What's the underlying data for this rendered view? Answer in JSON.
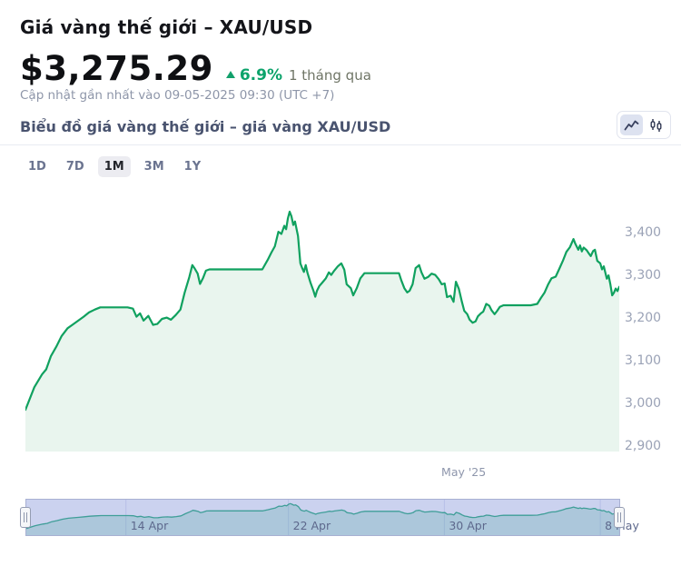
{
  "header": {
    "title": "Giá vàng thế giới – XAU/USD",
    "price": "$3,275.29",
    "change_percent": "6.9%",
    "change_period": "1 tháng qua",
    "updated_text": "Cập nhật gần nhất vào 09-05-2025 09:30 (UTC +7)"
  },
  "chart_header": {
    "subtitle": "Biểu đồ giá vàng thế giới – giá vàng XAU/USD",
    "chart_type_options": [
      "line-chart-icon",
      "candlestick-icon"
    ],
    "active_chart_type": "line"
  },
  "ranges": {
    "items": [
      "1D",
      "7D",
      "1M",
      "3M",
      "1Y"
    ],
    "active": "1M"
  },
  "chart_data": {
    "type": "area",
    "title": "Giá vàng thế giới – XAU/USD",
    "series_name": "XAU/USD",
    "ylim": [
      2889,
      3479
    ],
    "yticks": [
      3400,
      3300,
      3200,
      3100,
      3000,
      2900
    ],
    "ytick_labels": [
      "3,400",
      "3,300",
      "3,200",
      "3,100",
      "3,000",
      "2,900"
    ],
    "xtick": {
      "label": "May '25",
      "t": 0.734
    },
    "grid": false,
    "colors": {
      "line": "#10a15f",
      "fill": "#e9f5ee",
      "accent_green": "#0ca36b",
      "nav_line": "#3f9e98",
      "nav_fill": "rgba(63,158,152,0.22)",
      "nav_bg": "#cbd2ef",
      "nav_grid": "#b7bfe7"
    },
    "navigator": {
      "ticks": [
        {
          "label": "14 Apr",
          "t": 0.168
        },
        {
          "label": "22 Apr",
          "t": 0.442
        },
        {
          "label": "30 Apr",
          "t": 0.705
        },
        {
          "label": "8 May",
          "t": 0.968
        }
      ]
    },
    "points": [
      [
        0,
        2987
      ],
      [
        0.015,
        3040
      ],
      [
        0.028,
        3070
      ],
      [
        0.035,
        3082
      ],
      [
        0.043,
        3113
      ],
      [
        0.052,
        3135
      ],
      [
        0.061,
        3160
      ],
      [
        0.071,
        3178
      ],
      [
        0.08,
        3187
      ],
      [
        0.089,
        3196
      ],
      [
        0.098,
        3205
      ],
      [
        0.107,
        3215
      ],
      [
        0.117,
        3222
      ],
      [
        0.126,
        3227
      ],
      [
        0.172,
        3227
      ],
      [
        0.181,
        3224
      ],
      [
        0.187,
        3205
      ],
      [
        0.193,
        3213
      ],
      [
        0.199,
        3196
      ],
      [
        0.207,
        3207
      ],
      [
        0.215,
        3186
      ],
      [
        0.222,
        3188
      ],
      [
        0.23,
        3200
      ],
      [
        0.238,
        3203
      ],
      [
        0.245,
        3198
      ],
      [
        0.253,
        3209
      ],
      [
        0.261,
        3222
      ],
      [
        0.268,
        3261
      ],
      [
        0.276,
        3298
      ],
      [
        0.281,
        3326
      ],
      [
        0.285,
        3318
      ],
      [
        0.29,
        3306
      ],
      [
        0.294,
        3282
      ],
      [
        0.299,
        3295
      ],
      [
        0.304,
        3313
      ],
      [
        0.31,
        3316
      ],
      [
        0.399,
        3316
      ],
      [
        0.408,
        3338
      ],
      [
        0.414,
        3355
      ],
      [
        0.42,
        3370
      ],
      [
        0.426,
        3404
      ],
      [
        0.431,
        3399
      ],
      [
        0.436,
        3418
      ],
      [
        0.439,
        3410
      ],
      [
        0.442,
        3436
      ],
      [
        0.445,
        3451
      ],
      [
        0.448,
        3440
      ],
      [
        0.451,
        3420
      ],
      [
        0.454,
        3428
      ],
      [
        0.459,
        3394
      ],
      [
        0.463,
        3330
      ],
      [
        0.466,
        3319
      ],
      [
        0.469,
        3310
      ],
      [
        0.472,
        3326
      ],
      [
        0.475,
        3308
      ],
      [
        0.48,
        3285
      ],
      [
        0.485,
        3266
      ],
      [
        0.488,
        3252
      ],
      [
        0.491,
        3266
      ],
      [
        0.495,
        3277
      ],
      [
        0.5,
        3285
      ],
      [
        0.506,
        3295
      ],
      [
        0.511,
        3309
      ],
      [
        0.515,
        3303
      ],
      [
        0.52,
        3313
      ],
      [
        0.526,
        3323
      ],
      [
        0.532,
        3330
      ],
      [
        0.537,
        3315
      ],
      [
        0.541,
        3281
      ],
      [
        0.548,
        3272
      ],
      [
        0.552,
        3255
      ],
      [
        0.558,
        3272
      ],
      [
        0.564,
        3295
      ],
      [
        0.571,
        3307
      ],
      [
        0.629,
        3307
      ],
      [
        0.633,
        3290
      ],
      [
        0.638,
        3272
      ],
      [
        0.643,
        3262
      ],
      [
        0.647,
        3266
      ],
      [
        0.652,
        3281
      ],
      [
        0.657,
        3319
      ],
      [
        0.663,
        3326
      ],
      [
        0.667,
        3309
      ],
      [
        0.672,
        3294
      ],
      [
        0.678,
        3298
      ],
      [
        0.684,
        3306
      ],
      [
        0.69,
        3303
      ],
      [
        0.696,
        3293
      ],
      [
        0.701,
        3281
      ],
      [
        0.706,
        3283
      ],
      [
        0.71,
        3251
      ],
      [
        0.716,
        3254
      ],
      [
        0.721,
        3240
      ],
      [
        0.725,
        3287
      ],
      [
        0.73,
        3270
      ],
      [
        0.735,
        3240
      ],
      [
        0.739,
        3219
      ],
      [
        0.744,
        3211
      ],
      [
        0.748,
        3198
      ],
      [
        0.753,
        3191
      ],
      [
        0.758,
        3194
      ],
      [
        0.762,
        3206
      ],
      [
        0.767,
        3213
      ],
      [
        0.771,
        3217
      ],
      [
        0.776,
        3235
      ],
      [
        0.781,
        3231
      ],
      [
        0.785,
        3220
      ],
      [
        0.79,
        3211
      ],
      [
        0.794,
        3218
      ],
      [
        0.799,
        3228
      ],
      [
        0.805,
        3232
      ],
      [
        0.851,
        3232
      ],
      [
        0.862,
        3235
      ],
      [
        0.868,
        3249
      ],
      [
        0.874,
        3261
      ],
      [
        0.88,
        3280
      ],
      [
        0.886,
        3295
      ],
      [
        0.893,
        3299
      ],
      [
        0.899,
        3317
      ],
      [
        0.905,
        3336
      ],
      [
        0.911,
        3357
      ],
      [
        0.917,
        3368
      ],
      [
        0.923,
        3387
      ],
      [
        0.926,
        3376
      ],
      [
        0.931,
        3362
      ],
      [
        0.934,
        3372
      ],
      [
        0.937,
        3358
      ],
      [
        0.94,
        3367
      ],
      [
        0.945,
        3361
      ],
      [
        0.949,
        3353
      ],
      [
        0.952,
        3347
      ],
      [
        0.956,
        3359
      ],
      [
        0.959,
        3362
      ],
      [
        0.963,
        3336
      ],
      [
        0.968,
        3330
      ],
      [
        0.971,
        3316
      ],
      [
        0.974,
        3323
      ],
      [
        0.979,
        3294
      ],
      [
        0.982,
        3302
      ],
      [
        0.985,
        3281
      ],
      [
        0.988,
        3255
      ],
      [
        0.991,
        3261
      ],
      [
        0.994,
        3271
      ],
      [
        0.997,
        3265
      ],
      [
        1,
        3275
      ]
    ]
  }
}
